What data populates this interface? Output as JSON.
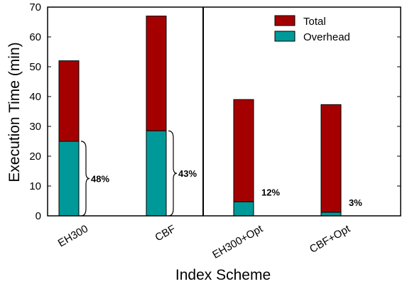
{
  "chart_data": {
    "type": "bar",
    "stacked": true,
    "xlabel": "Index Scheme",
    "ylabel": "Execution Time (min)",
    "ylim": [
      0,
      70
    ],
    "yticks": [
      0,
      10,
      20,
      30,
      40,
      50,
      60,
      70
    ],
    "categories": [
      "EH300",
      "CBF",
      "EH300+Opt",
      "CBF+Opt"
    ],
    "series": [
      {
        "name": "Total",
        "values": [
          52,
          67,
          39,
          37.3
        ],
        "color": "#a50000"
      },
      {
        "name": "Overhead",
        "values": [
          25,
          28.5,
          4.7,
          1.2
        ],
        "color": "#009999"
      }
    ],
    "annotations": [
      "48%",
      "43%",
      "12%",
      "3%"
    ],
    "legend": {
      "position": "top-right"
    },
    "grid": false
  }
}
